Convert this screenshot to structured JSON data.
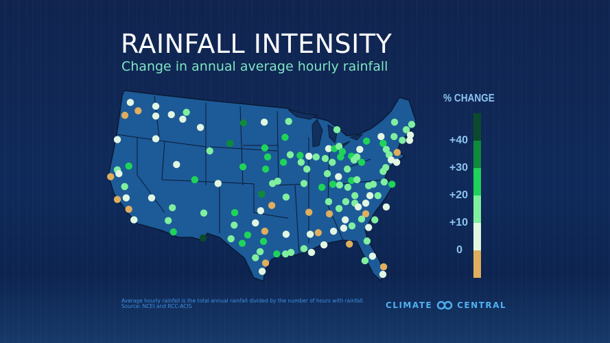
{
  "header": {
    "title": "RAINFALL INTENSITY",
    "subtitle": "Change in annual average hourly rainfall"
  },
  "legend": {
    "title": "% CHANGE",
    "bins": [
      {
        "key": "40+",
        "color": "#0b4a2c"
      },
      {
        "key": "30-40",
        "color": "#0f8a3c"
      },
      {
        "key": "20-30",
        "color": "#1fd35a"
      },
      {
        "key": "10-20",
        "color": "#80ef9f"
      },
      {
        "key": "0-10",
        "color": "#e2f7e2"
      },
      {
        "key": "neg",
        "color": "#dfae5e"
      }
    ],
    "tick_labels": [
      "+40",
      "+30",
      "+20",
      "+10",
      "0"
    ]
  },
  "stations": [
    [
      -121.2,
      47.7,
      "0-10"
    ],
    [
      -119.7,
      46.6,
      "neg"
    ],
    [
      -122.25,
      46.0,
      "neg"
    ],
    [
      -116.3,
      47.2,
      "0-10"
    ],
    [
      -116.3,
      45.9,
      "0-10"
    ],
    [
      -113.3,
      46.1,
      "0-10"
    ],
    [
      -110.4,
      46.4,
      "10-20"
    ],
    [
      -111.1,
      45.5,
      "0-10"
    ],
    [
      -107.7,
      44.4,
      "0-10"
    ],
    [
      -116.3,
      42.9,
      "0-10"
    ],
    [
      -123.7,
      42.8,
      "0-10"
    ],
    [
      -105.9,
      41.3,
      "10-20"
    ],
    [
      -112.3,
      39.5,
      "0-10"
    ],
    [
      -121.5,
      39.3,
      "20-30"
    ],
    [
      -123.7,
      38.8,
      "10-20"
    ],
    [
      -123.4,
      38.3,
      "0-10"
    ],
    [
      -125.0,
      37.9,
      "neg"
    ],
    [
      -122.3,
      36.6,
      "10-20"
    ],
    [
      -122.0,
      35.1,
      "0-10"
    ],
    [
      -123.7,
      34.9,
      "neg"
    ],
    [
      -121.5,
      33.6,
      "neg"
    ],
    [
      -120.5,
      32.2,
      "0-10"
    ],
    [
      -117.1,
      35.1,
      "0-10"
    ],
    [
      -113.1,
      33.8,
      "10-20"
    ],
    [
      -113.9,
      32.1,
      "10-20"
    ],
    [
      -112.9,
      30.6,
      "20-30"
    ],
    [
      -107.05,
      33.1,
      "10-20"
    ],
    [
      -107.2,
      29.8,
      "40+"
    ],
    [
      -108.8,
      37.5,
      "20-30"
    ],
    [
      -104.3,
      37.0,
      "0-10"
    ],
    [
      -99.4,
      45.0,
      "30-40"
    ],
    [
      -95.4,
      45.1,
      "0-10"
    ],
    [
      -90.7,
      45.2,
      "10-20"
    ],
    [
      -102.0,
      42.3,
      "30-40"
    ],
    [
      -91.4,
      43.1,
      "20-30"
    ],
    [
      -95.3,
      41.7,
      "20-30"
    ],
    [
      -94.75,
      40.5,
      "20-30"
    ],
    [
      -99.5,
      39.2,
      "20-30"
    ],
    [
      -95.15,
      38.9,
      "20-30"
    ],
    [
      -90.4,
      40.8,
      "10-20"
    ],
    [
      -91.7,
      39.8,
      "20-30"
    ],
    [
      -88.5,
      40.7,
      "20-30"
    ],
    [
      -88.3,
      39.8,
      "10-20"
    ],
    [
      -86.8,
      40.6,
      "0-10"
    ],
    [
      -85.4,
      40.5,
      "10-20"
    ],
    [
      -87.2,
      38.9,
      "10-20"
    ],
    [
      -83.65,
      40.3,
      "10-20"
    ],
    [
      -82.3,
      39.8,
      "10-20"
    ],
    [
      -83.0,
      41.6,
      "0-10"
    ],
    [
      -81.9,
      41.6,
      "20-30"
    ],
    [
      -93.8,
      37.0,
      "10-20"
    ],
    [
      -92.8,
      37.3,
      "10-20"
    ],
    [
      -87.75,
      37.0,
      "10-20"
    ],
    [
      -83.25,
      38.3,
      "10-20"
    ],
    [
      -82.2,
      36.9,
      "20-30"
    ],
    [
      -84.3,
      36.5,
      "20-30"
    ],
    [
      -95.9,
      35.6,
      "30-40"
    ],
    [
      -91.2,
      35.2,
      "10-20"
    ],
    [
      -83.0,
      34.6,
      "10-20"
    ],
    [
      -93.95,
      34.1,
      "neg"
    ],
    [
      -96.1,
      33.4,
      "0-10"
    ],
    [
      -101.1,
      33.15,
      "20-30"
    ],
    [
      -101.2,
      31.5,
      "10-20"
    ],
    [
      -97.1,
      31.8,
      "0-10"
    ],
    [
      -95.3,
      30.7,
      "neg"
    ],
    [
      -98.6,
      30.2,
      "20-30"
    ],
    [
      -101.8,
      29.7,
      "10-20"
    ],
    [
      -99.65,
      29.1,
      "20-30"
    ],
    [
      -95.55,
      29.35,
      "20-30"
    ],
    [
      -96.2,
      28.0,
      "10-20"
    ],
    [
      -97.1,
      27.2,
      "10-20"
    ],
    [
      -93.0,
      27.7,
      "20-30"
    ],
    [
      -91.3,
      27.7,
      "10-20"
    ],
    [
      -90.25,
      27.9,
      "10-20"
    ],
    [
      -95.15,
      26.5,
      "neg"
    ],
    [
      -95.8,
      25.4,
      "0-10"
    ],
    [
      -91.2,
      30.3,
      "0-10"
    ],
    [
      -86.8,
      33.2,
      "neg"
    ],
    [
      -86.55,
      30.3,
      "0-10"
    ],
    [
      -85.0,
      30.5,
      "neg"
    ],
    [
      -87.75,
      28.4,
      "10-20"
    ],
    [
      -86.3,
      27.9,
      "0-10"
    ],
    [
      -83.9,
      28.9,
      "0-10"
    ],
    [
      -82.85,
      33.0,
      "neg"
    ],
    [
      -82.05,
      30.7,
      "0-10"
    ],
    [
      -70.3,
      45.1,
      "10-20"
    ],
    [
      -67.0,
      44.8,
      "10-20"
    ],
    [
      -81.4,
      44.1,
      "10-20"
    ],
    [
      -68.05,
      44.1,
      "10-20"
    ],
    [
      -67.25,
      43.4,
      "0-10"
    ],
    [
      -72.9,
      43.2,
      "0-10"
    ],
    [
      -70.4,
      43.2,
      "10-20"
    ],
    [
      -68.8,
      42.7,
      "10-20"
    ],
    [
      -67.4,
      42.7,
      "0-10"
    ],
    [
      -75.7,
      42.6,
      "20-30"
    ],
    [
      -72.5,
      42.3,
      "20-30"
    ],
    [
      -81.0,
      41.9,
      "10-20"
    ],
    [
      -80.35,
      41.2,
      "20-30"
    ],
    [
      -77.0,
      41.5,
      "0-10"
    ],
    [
      -71.9,
      41.5,
      "10-20"
    ],
    [
      -69.8,
      41.1,
      "neg"
    ],
    [
      -80.7,
      40.5,
      "20-30"
    ],
    [
      -78.6,
      40.6,
      "20-30"
    ],
    [
      -77.55,
      40.5,
      "10-20"
    ],
    [
      -78.1,
      40.1,
      "10-20"
    ],
    [
      -76.65,
      39.8,
      "20-30"
    ],
    [
      -71.35,
      40.8,
      "10-20"
    ],
    [
      -70.95,
      40.1,
      "0-10"
    ],
    [
      -69.9,
      39.8,
      "0-10"
    ],
    [
      -72.0,
      39.1,
      "10-20"
    ],
    [
      -79.4,
      38.9,
      "10-20"
    ],
    [
      -72.5,
      38.6,
      "10-20"
    ],
    [
      -81.1,
      37.9,
      "0-10"
    ],
    [
      -78.6,
      37.4,
      "20-30"
    ],
    [
      -77.55,
      37.5,
      "10-20"
    ],
    [
      -80.9,
      36.8,
      "10-20"
    ],
    [
      -79.3,
      36.5,
      "10-20"
    ],
    [
      -75.3,
      36.7,
      "10-20"
    ],
    [
      -74.4,
      36.9,
      "10-20"
    ],
    [
      -72.3,
      37.2,
      "10-20"
    ],
    [
      -70.8,
      36.9,
      "20-30"
    ],
    [
      -77.95,
      35.4,
      "10-20"
    ],
    [
      -75.05,
      35.4,
      "0-10"
    ],
    [
      -73.5,
      35.4,
      "10-20"
    ],
    [
      -79.7,
      34.6,
      "10-20"
    ],
    [
      -77.95,
      34.4,
      "10-20"
    ],
    [
      -75.85,
      34.4,
      "0-10"
    ],
    [
      -71.9,
      33.9,
      "0-10"
    ],
    [
      -81.0,
      33.7,
      "10-20"
    ],
    [
      -77.3,
      33.9,
      "0-10"
    ],
    [
      -75.85,
      33.0,
      "neg"
    ],
    [
      -79.8,
      32.2,
      "0-10"
    ],
    [
      -76.65,
      32.3,
      "10-20"
    ],
    [
      -74.1,
      32.2,
      "10-20"
    ],
    [
      -78.5,
      31.4,
      "10-20"
    ],
    [
      -80.1,
      31.1,
      "0-10"
    ],
    [
      -75.3,
      31.2,
      "0-10"
    ],
    [
      -79.0,
      29.0,
      "neg"
    ],
    [
      -75.6,
      29.4,
      "10-20"
    ],
    [
      -74.55,
      27.4,
      "0-10"
    ],
    [
      -76.0,
      26.8,
      "10-20"
    ],
    [
      -72.4,
      26.0,
      "neg"
    ],
    [
      -72.55,
      25.0,
      "0-10"
    ]
  ],
  "footer": {
    "note": "Average hourly rainfall is the total annual rainfall divided by the number of hours with rainfall.",
    "source": "Source: NCEI and RCC-ACIS",
    "logo_left": "CLIMATE",
    "logo_right": "CENTRAL"
  }
}
